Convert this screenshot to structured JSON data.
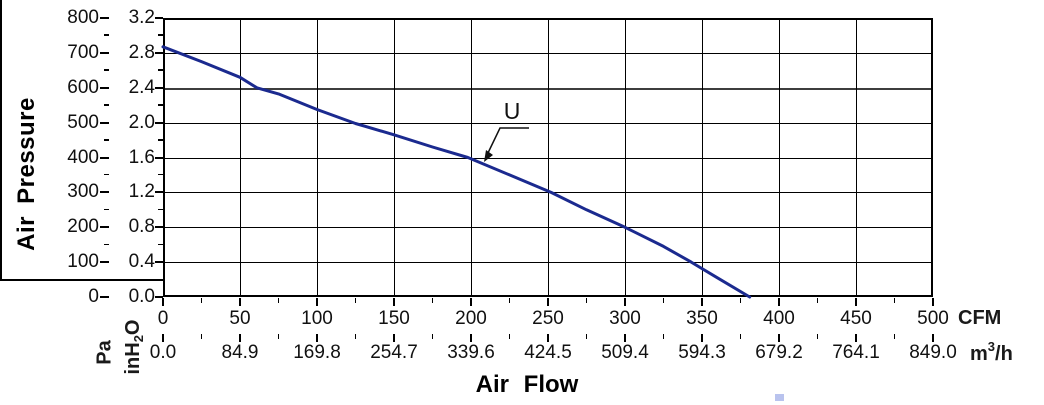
{
  "y_axis": {
    "title": "Air Pressure",
    "pa": {
      "unit": "Pa",
      "ticks": [
        "800",
        "700",
        "600",
        "500",
        "400",
        "300",
        "200",
        "100",
        "0"
      ]
    },
    "inh2o": {
      "unit_prefix": "inH",
      "unit_sub": "2",
      "unit_suffix": "O",
      "ticks": [
        "3.2",
        "2.8",
        "2.4",
        "2.0",
        "1.6",
        "1.2",
        "0.8",
        "0.4",
        "0.0"
      ]
    }
  },
  "x_axis": {
    "title": "Air Flow",
    "cfm": {
      "unit": "CFM",
      "ticks": [
        "0",
        "50",
        "100",
        "150",
        "200",
        "250",
        "300",
        "350",
        "400",
        "450",
        "500"
      ]
    },
    "m3h": {
      "unit_prefix": "m",
      "unit_sup": "3",
      "unit_suffix": "/h",
      "ticks": [
        "0.0",
        "84.9",
        "169.8",
        "254.7",
        "339.6",
        "424.5",
        "509.4",
        "594.3",
        "679.2",
        "764.1",
        "849.0"
      ]
    }
  },
  "annotation": {
    "label": "U"
  },
  "colors": {
    "curve": "#1b2a8f",
    "grid": "#000000",
    "thick_grid": "#3d3d3d",
    "artifact": "#b9c3ee"
  },
  "chart_data": {
    "type": "line",
    "title": "",
    "xlabel": "Air Flow",
    "ylabel": "Air Pressure",
    "x_units": [
      "CFM",
      "m3/h"
    ],
    "y_units": [
      "Pa",
      "inH2O"
    ],
    "x_range_cfm": [
      0,
      500
    ],
    "x_range_m3h": [
      0.0,
      849.0
    ],
    "y_range_inh2o": [
      0.0,
      3.2
    ],
    "y_range_pa": [
      0,
      800
    ],
    "grid": true,
    "x_major_step_cfm": 50,
    "y_major_step_inh2o": 0.4,
    "series": [
      {
        "name": "U",
        "color": "#1b2a8f",
        "points_cfm_inh2o": [
          [
            0,
            2.87
          ],
          [
            25,
            2.7
          ],
          [
            50,
            2.52
          ],
          [
            61,
            2.4
          ],
          [
            75,
            2.33
          ],
          [
            100,
            2.15
          ],
          [
            125,
            1.99
          ],
          [
            150,
            1.86
          ],
          [
            175,
            1.72
          ],
          [
            198,
            1.6
          ],
          [
            225,
            1.4
          ],
          [
            252,
            1.2
          ],
          [
            275,
            1.0
          ],
          [
            300,
            0.8
          ],
          [
            325,
            0.58
          ],
          [
            343,
            0.4
          ],
          [
            360,
            0.22
          ],
          [
            381,
            0.0
          ]
        ]
      }
    ]
  }
}
